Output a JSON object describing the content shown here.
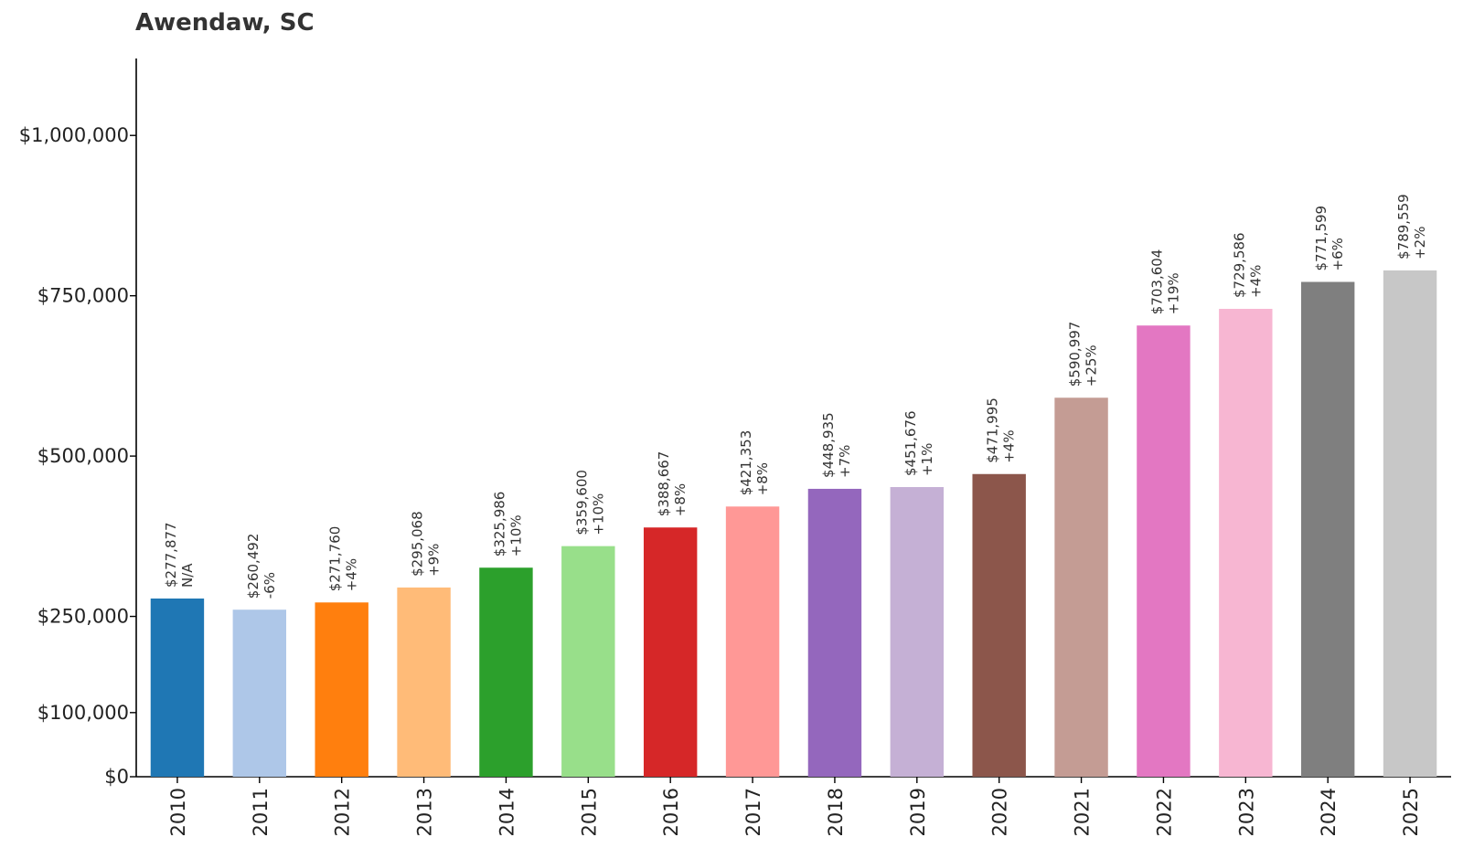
{
  "chart_data": {
    "type": "bar",
    "title": "Awendaw, SC",
    "xlabel": "",
    "ylabel": "",
    "ylim": [
      0,
      1120000
    ],
    "yticks": [
      0,
      100000,
      250000,
      500000,
      750000,
      1000000
    ],
    "ytick_labels": [
      "$0",
      "$100,000",
      "$250,000",
      "$500,000",
      "$750,000",
      "$1,000,000"
    ],
    "grid": false,
    "categories": [
      "2010",
      "2011",
      "2012",
      "2013",
      "2014",
      "2015",
      "2016",
      "2017",
      "2018",
      "2019",
      "2020",
      "2021",
      "2022",
      "2023",
      "2024",
      "2025"
    ],
    "values": [
      277877,
      260492,
      271760,
      295068,
      325986,
      359600,
      388667,
      421353,
      448935,
      451676,
      471995,
      590997,
      703604,
      729586,
      771599,
      789559
    ],
    "value_labels": [
      "$277,877",
      "$260,492",
      "$271,760",
      "$295,068",
      "$325,986",
      "$359,600",
      "$388,667",
      "$421,353",
      "$448,935",
      "$451,676",
      "$471,995",
      "$590,997",
      "$703,604",
      "$729,586",
      "$771,599",
      "$789,559"
    ],
    "change_labels": [
      "N/A",
      "-6%",
      "+4%",
      "+9%",
      "+10%",
      "+10%",
      "+8%",
      "+8%",
      "+7%",
      "+1%",
      "+4%",
      "+25%",
      "+19%",
      "+4%",
      "+6%",
      "+2%"
    ],
    "colors": [
      "#1f77b4",
      "#aec7e8",
      "#ff7f0e",
      "#ffbb78",
      "#2ca02c",
      "#98df8a",
      "#d62728",
      "#ff9896",
      "#9467bd",
      "#c5b0d5",
      "#8c564b",
      "#c49c94",
      "#e377c2",
      "#f7b6d2",
      "#7f7f7f",
      "#c7c7c7"
    ]
  }
}
